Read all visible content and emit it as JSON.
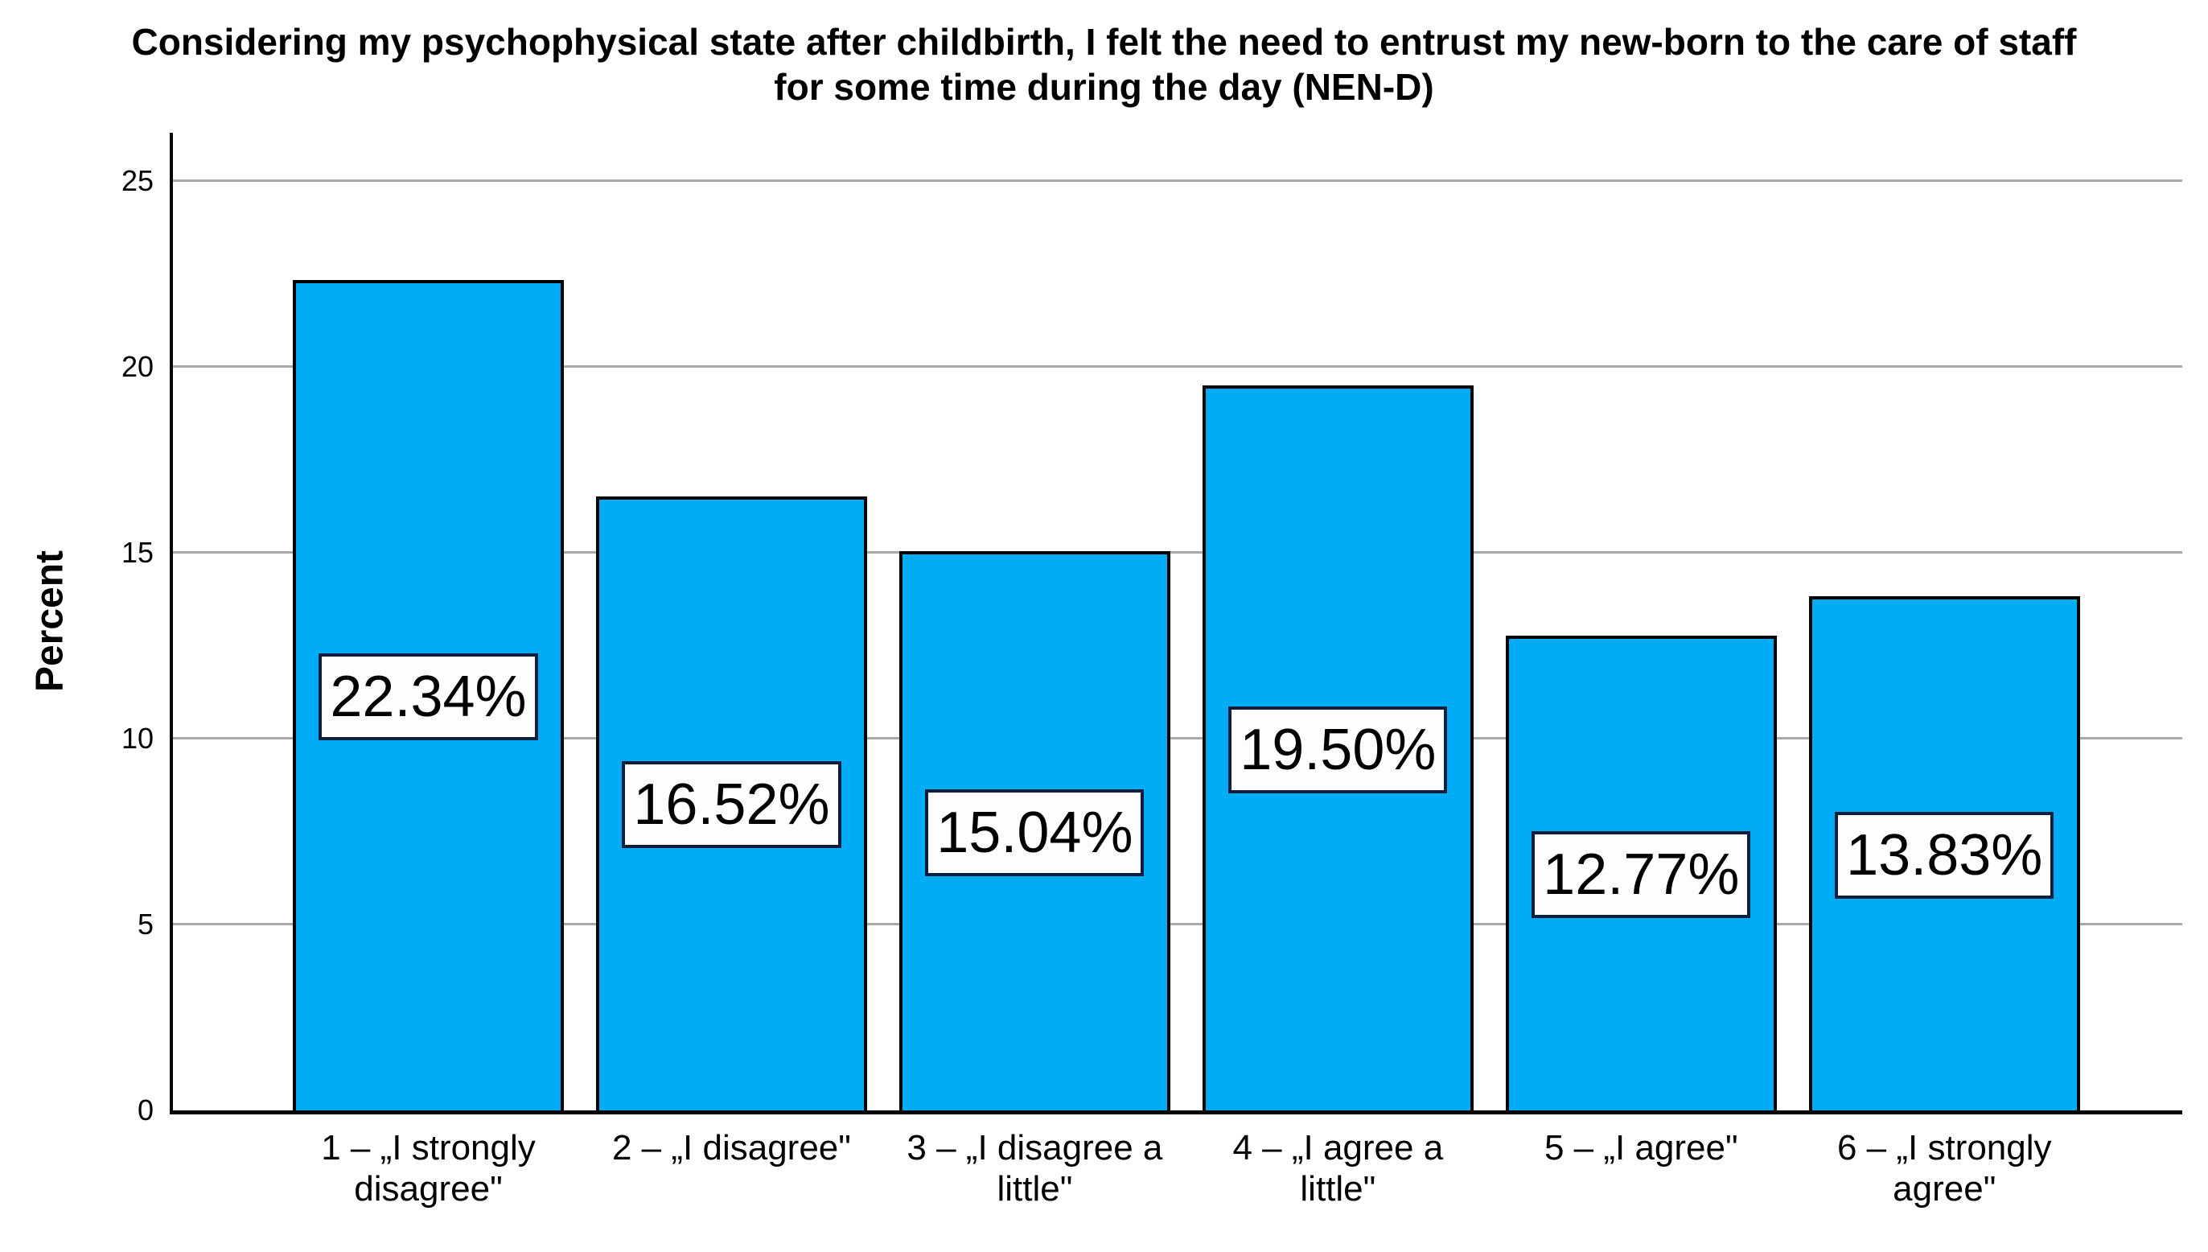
{
  "chart_data": {
    "type": "bar",
    "title_line1": "Considering my psychophysical state after childbirth, I felt the need to entrust my new-born to the care of staff",
    "title_line2": "for some time during the day (NEN-D)",
    "ylabel": "Percent",
    "categories": [
      "1 – „I strongly disagree\"",
      "2 – „I disagree\"",
      "3 – „I disagree a little\"",
      "4 – „I agree a little\"",
      "5 – „I agree\"",
      "6 – „I strongly agree\""
    ],
    "values": [
      22.34,
      16.52,
      15.04,
      19.5,
      12.77,
      13.83
    ],
    "value_labels": [
      "22.34%",
      "16.52%",
      "15.04%",
      "19.50%",
      "12.77%",
      "13.83%"
    ],
    "yticks": [
      0,
      5,
      10,
      15,
      20,
      25
    ],
    "ytick_labels": [
      "0",
      "5",
      "10",
      "15",
      "20",
      "25"
    ],
    "ylim": [
      0,
      26.3
    ],
    "grid": "horizontal",
    "legend": "none",
    "bar_color": "#00acf6",
    "bar_border_color": "#000000",
    "value_label_box_border_color": "#0d1f3c",
    "value_label_box_background": "#fdfdfd",
    "gridline_color": "#a8a8a8",
    "axis_color": "#000000"
  }
}
